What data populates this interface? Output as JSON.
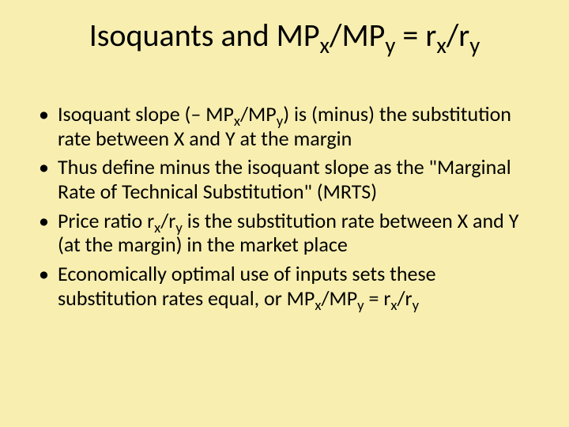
{
  "background_color": "#f7eeb0",
  "text_color": "#000000",
  "title_fontsize": 40,
  "body_fontsize": 26,
  "title": {
    "parts": [
      "Isoquants and MP",
      "x",
      "/MP",
      "y",
      " = r",
      "x",
      "/r",
      "y"
    ]
  },
  "bullets": [
    {
      "parts": [
        "Isoquant slope (– MP",
        "x",
        "/MP",
        "y",
        ") is (minus) the substitution rate between X and Y at the margin"
      ]
    },
    {
      "parts": [
        "Thus define minus the isoquant slope as the \"Marginal Rate of Technical Substitution\" (MRTS)"
      ]
    },
    {
      "parts": [
        "Price ratio r",
        "x",
        "/r",
        "y",
        " is the substitution rate between X and Y (at the margin) in the market place"
      ]
    },
    {
      "parts": [
        "Economically optimal use of inputs sets these substitution rates equal, or MP",
        "x",
        "/MP",
        "y",
        " = r",
        "x",
        "/r",
        "y"
      ]
    }
  ]
}
